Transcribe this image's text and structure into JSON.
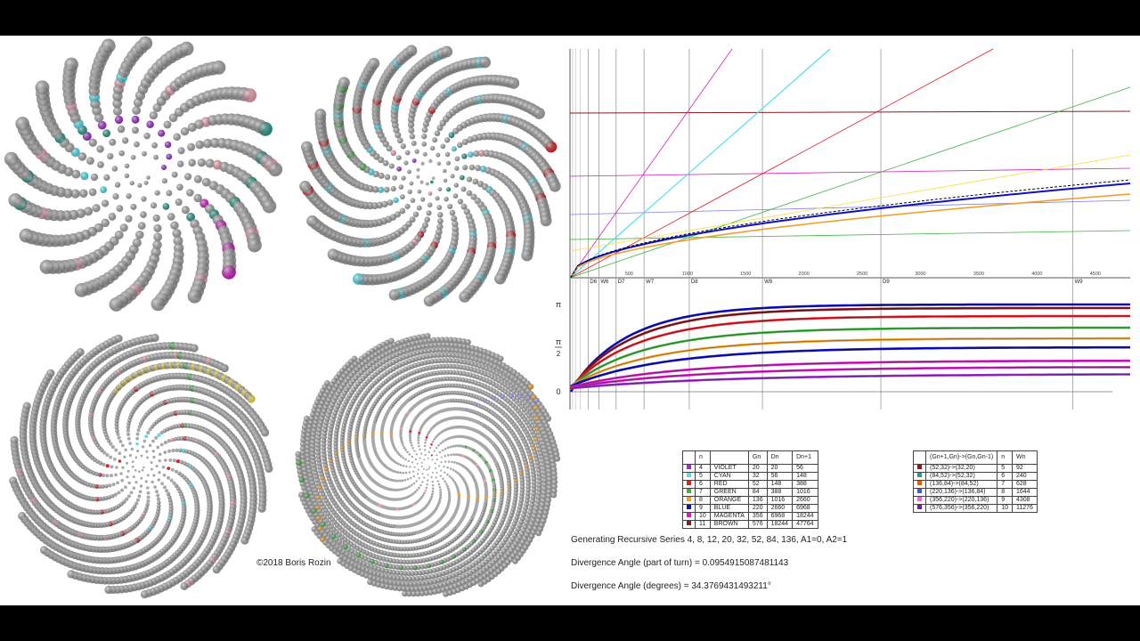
{
  "copyright": "©2018  Boris Rozin",
  "caption_series": "Generating Recursive Series   4, 8, 12, 20, 32, 52, 84, 136,        A1=0,   A2=1",
  "caption_angle_turn": "Divergence Angle (part of turn) = 0.0954915087481143",
  "caption_angle_deg": "Divergence Angle (degrees) = 34.3769431493211°",
  "colors": {
    "violet": "#9b30c8",
    "cyan": "#50e0ee",
    "red": "#e0202a",
    "green": "#40b040",
    "orange": "#f0a030",
    "blue": "#1010c0",
    "magenta": "#d020c0",
    "brown": "#8a1a20",
    "teal": "#2a9a8a",
    "pink": "#f2a0b0",
    "yellow": "#f4e040",
    "lightblue": "#9090e8",
    "grey": "#a8a8a8"
  },
  "table1": {
    "headers": [
      "",
      "n",
      "",
      "Gn",
      "Dn",
      "Dn+1"
    ],
    "rows": [
      {
        "color": "#9b30c8",
        "n": "4",
        "name": "VIOLET",
        "gn": "20",
        "dn": "20",
        "dn1": "56"
      },
      {
        "color": "#50e0ee",
        "n": "5",
        "name": "CYAN",
        "gn": "32",
        "dn": "56",
        "dn1": "148"
      },
      {
        "color": "#e0202a",
        "n": "6",
        "name": "RED",
        "gn": "52",
        "dn": "148",
        "dn1": "388"
      },
      {
        "color": "#40b040",
        "n": "7",
        "name": "GREEN",
        "gn": "84",
        "dn": "388",
        "dn1": "1016"
      },
      {
        "color": "#f0a030",
        "n": "8",
        "name": "ORANGE",
        "gn": "136",
        "dn": "1016",
        "dn1": "2660"
      },
      {
        "color": "#1010c0",
        "n": "9",
        "name": "BLUE",
        "gn": "220",
        "dn": "2660",
        "dn1": "6968"
      },
      {
        "color": "#d020c0",
        "n": "10",
        "name": "MAGENTA",
        "gn": "356",
        "dn": "6968",
        "dn1": "18244"
      },
      {
        "color": "#8a1a20",
        "n": "11",
        "name": "BROWN",
        "gn": "576",
        "dn": "18244",
        "dn1": "47764"
      }
    ]
  },
  "table2": {
    "headers": [
      "",
      "(Gn+1,Gn)->(Gn,Gn-1)",
      "n",
      "Wn"
    ],
    "rows": [
      {
        "color": "#8a1a20",
        "pair": "(52,32)->(32,20)",
        "n": "5",
        "wn": "92"
      },
      {
        "color": "#2a9a8a",
        "pair": "(84,52)->(52,32)",
        "n": "6",
        "wn": "240"
      },
      {
        "color": "#e06010",
        "pair": "(136,84)->(84,52)",
        "n": "7",
        "wn": "628"
      },
      {
        "color": "#4060d0",
        "pair": "(220,136)->(136,84)",
        "n": "8",
        "wn": "1644"
      },
      {
        "color": "#e070d0",
        "pair": "(356,220)->(220,136)",
        "n": "9",
        "wn": "4308"
      },
      {
        "color": "#7020a0",
        "pair": "(576,356)->(356,220)",
        "n": "10",
        "wn": "11276"
      }
    ]
  },
  "chart_data": [
    {
      "type": "line",
      "xlim": [
        0,
        4800
      ],
      "x_ticks": [
        "500",
        "1000",
        "1500",
        "2000",
        "2500",
        "3000",
        "3500",
        "4000",
        "4500"
      ],
      "x_tick_values": [
        500,
        1000,
        1500,
        2000,
        2500,
        3000,
        3500,
        4000,
        4500
      ],
      "markers": [
        {
          "label": "D6",
          "x": 148
        },
        {
          "label": "W6",
          "x": 240
        },
        {
          "label": "D7",
          "x": 388
        },
        {
          "label": "W7",
          "x": 628
        },
        {
          "label": "D8",
          "x": 1016
        },
        {
          "label": "W8",
          "x": 1644
        },
        {
          "label": "D9",
          "x": 2660
        },
        {
          "label": "W9",
          "x": 4308
        }
      ]
    },
    {
      "type": "line",
      "y_ticks": [
        "π",
        "π/2",
        "0"
      ],
      "series_colors": [
        "#1010c0",
        "#8a1a20",
        "#e0202a",
        "#40b040",
        "#f0a030",
        "#1010c0",
        "#d020c0",
        "#d020c0",
        "#9b30c8"
      ]
    }
  ]
}
